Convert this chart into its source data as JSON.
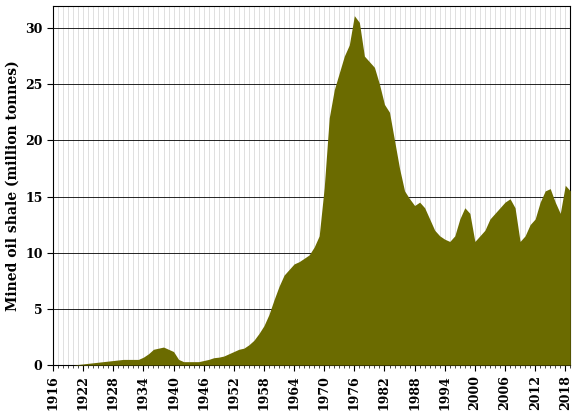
{
  "years": [
    1916,
    1917,
    1918,
    1919,
    1920,
    1921,
    1922,
    1923,
    1924,
    1925,
    1926,
    1927,
    1928,
    1929,
    1930,
    1931,
    1932,
    1933,
    1934,
    1935,
    1936,
    1937,
    1938,
    1939,
    1940,
    1941,
    1942,
    1943,
    1944,
    1945,
    1946,
    1947,
    1948,
    1949,
    1950,
    1951,
    1952,
    1953,
    1954,
    1955,
    1956,
    1957,
    1958,
    1959,
    1960,
    1961,
    1962,
    1963,
    1964,
    1965,
    1966,
    1967,
    1968,
    1969,
    1970,
    1971,
    1972,
    1973,
    1974,
    1975,
    1976,
    1977,
    1978,
    1979,
    1980,
    1981,
    1982,
    1983,
    1984,
    1985,
    1986,
    1987,
    1988,
    1989,
    1990,
    1991,
    1992,
    1993,
    1994,
    1995,
    1996,
    1997,
    1998,
    1999,
    2000,
    2001,
    2002,
    2003,
    2004,
    2005,
    2006,
    2007,
    2008,
    2009,
    2010,
    2011,
    2012,
    2013,
    2014,
    2015,
    2016,
    2017,
    2018,
    2019
  ],
  "values": [
    0,
    0,
    0,
    0,
    0,
    0.05,
    0.1,
    0.15,
    0.2,
    0.25,
    0.3,
    0.35,
    0.4,
    0.45,
    0.5,
    0.5,
    0.5,
    0.5,
    0.7,
    1.0,
    1.4,
    1.5,
    1.6,
    1.4,
    1.2,
    0.5,
    0.3,
    0.3,
    0.3,
    0.3,
    0.4,
    0.5,
    0.65,
    0.7,
    0.8,
    1.0,
    1.2,
    1.4,
    1.5,
    1.8,
    2.2,
    2.8,
    3.5,
    4.5,
    5.8,
    7.0,
    8.0,
    8.5,
    9.0,
    9.2,
    9.5,
    9.8,
    10.5,
    11.5,
    15.8,
    22.0,
    24.5,
    26.0,
    27.5,
    28.5,
    31.1,
    30.5,
    27.5,
    27.0,
    26.5,
    25.0,
    23.2,
    22.5,
    20.0,
    17.5,
    15.5,
    14.8,
    14.2,
    14.5,
    14.0,
    13.0,
    12.0,
    11.5,
    11.2,
    11.0,
    11.5,
    13.0,
    14.0,
    13.5,
    11.0,
    11.5,
    12.0,
    13.0,
    13.5,
    14.0,
    14.5,
    14.8,
    14.0,
    11.0,
    11.5,
    12.5,
    13.0,
    14.5,
    15.5,
    15.7,
    14.5,
    13.5,
    16.0,
    15.5
  ],
  "fill_color": "#6b6b00",
  "bg_color": "#ffffff",
  "ylabel": "Mined oil shale (million tonnes)",
  "ylim": [
    0,
    32
  ],
  "yticks": [
    0,
    5,
    10,
    15,
    20,
    25,
    30
  ],
  "xlim": [
    1916,
    2019
  ],
  "xticks": [
    1916,
    1922,
    1928,
    1934,
    1940,
    1946,
    1952,
    1958,
    1964,
    1970,
    1976,
    1982,
    1988,
    1994,
    2000,
    2006,
    2012,
    2018
  ],
  "vgrid_color": "#c8c8c8",
  "hgrid_color": "#000000",
  "tick_fontsize": 9,
  "label_fontsize": 10,
  "font_family": "DejaVu Serif"
}
